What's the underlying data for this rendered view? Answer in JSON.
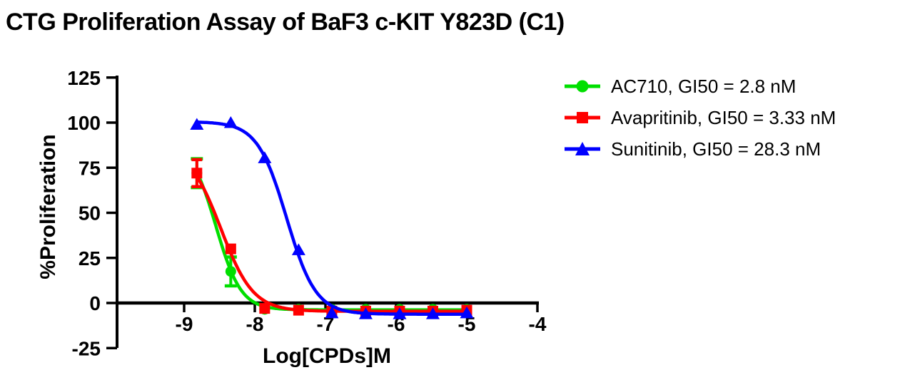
{
  "chart_data": {
    "type": "line",
    "title": "CTG Proliferation Assay of BaF3 c-KIT Y823D (C1)",
    "xlabel": "Log[CPDs]M",
    "ylabel": "%Proliferation",
    "x_ticks": [
      -9,
      -8,
      -7,
      -6,
      -5,
      -4
    ],
    "y_ticks": [
      125,
      100,
      75,
      50,
      25,
      0,
      -25
    ],
    "xlim": [
      -9.95,
      -4
    ],
    "ylim": [
      -25,
      125
    ],
    "grid": false,
    "legend_position": "top-right",
    "x": [
      -8.82,
      -8.34,
      -7.86,
      -7.38,
      -6.91,
      -6.43,
      -5.95,
      -5.48,
      -5.0
    ],
    "series": [
      {
        "name": "AC710",
        "legend_label": "AC710, GI50 = 2.8 nM",
        "gi50": "2.8 nM",
        "color": "#00df00",
        "marker": "circle",
        "values": [
          72,
          17.5,
          -3.5,
          -3.5,
          -3.5,
          -3.5,
          -3.5,
          -3.5,
          -3.5
        ],
        "errors": [
          8,
          8,
          0,
          0,
          0,
          0,
          0,
          0,
          0
        ],
        "fit": {
          "top": 89,
          "bottom": -3.8,
          "logec50": -8.55,
          "hill": 2.45
        }
      },
      {
        "name": "Avapritinib",
        "legend_label": "Avapritinib, GI50 = 3.33 nM",
        "gi50": "3.33 nM",
        "color": "#ff0000",
        "marker": "square",
        "values": [
          72,
          30,
          -3,
          -4,
          -4.5,
          -4.5,
          -4.5,
          -4.5,
          -4
        ],
        "errors": [
          7.5,
          0,
          0,
          0,
          0,
          0,
          0,
          0,
          0
        ],
        "fit": {
          "top": 87,
          "bottom": -4.6,
          "logec50": -8.48,
          "hill": 1.9
        }
      },
      {
        "name": "Sunitinib",
        "legend_label": "Sunitinib, GI50 = 28.3 nM",
        "gi50": "28.3 nM",
        "color": "#0000ff",
        "marker": "triangle",
        "values": [
          99,
          100,
          80.5,
          29.5,
          -5.5,
          -6,
          -6,
          -6,
          -5.5
        ],
        "errors": [
          0,
          0,
          0,
          0,
          0,
          0,
          0,
          0,
          0
        ],
        "fit": {
          "top": 100.5,
          "bottom": -6.2,
          "logec50": -7.55,
          "hill": 2.1
        }
      }
    ]
  }
}
